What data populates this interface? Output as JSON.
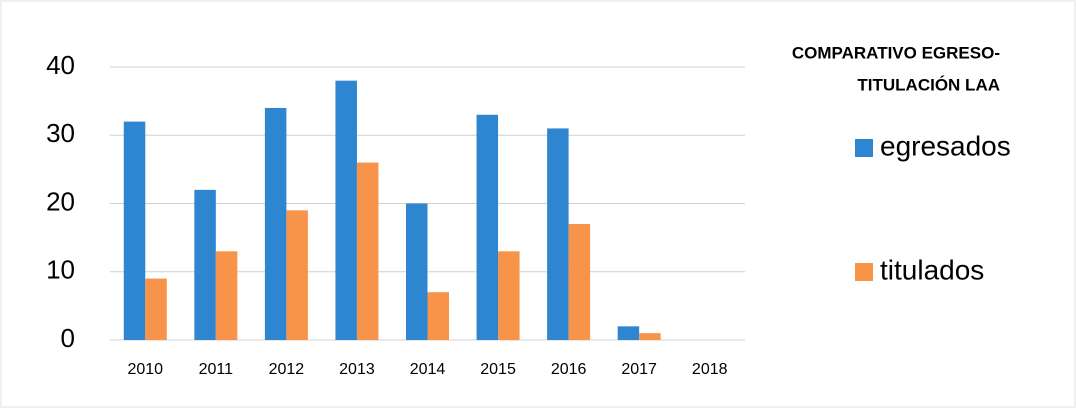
{
  "chart_data": {
    "type": "bar",
    "title": [
      "COMPARATIVO EGRESO-",
      "TITULACIÓN LAA"
    ],
    "categories": [
      "2010",
      "2011",
      "2012",
      "2013",
      "2014",
      "2015",
      "2016",
      "2017",
      "2018"
    ],
    "series": [
      {
        "name": "egresados",
        "color": "#2e86d1",
        "values": [
          32,
          22,
          34,
          38,
          20,
          33,
          31,
          2,
          0
        ]
      },
      {
        "name": "titulados",
        "color": "#f7944a",
        "values": [
          9,
          13,
          19,
          26,
          7,
          13,
          17,
          1,
          0
        ]
      }
    ],
    "ylim": [
      0,
      40
    ],
    "yticks": [
      0,
      10,
      20,
      30,
      40
    ],
    "grid": true
  }
}
